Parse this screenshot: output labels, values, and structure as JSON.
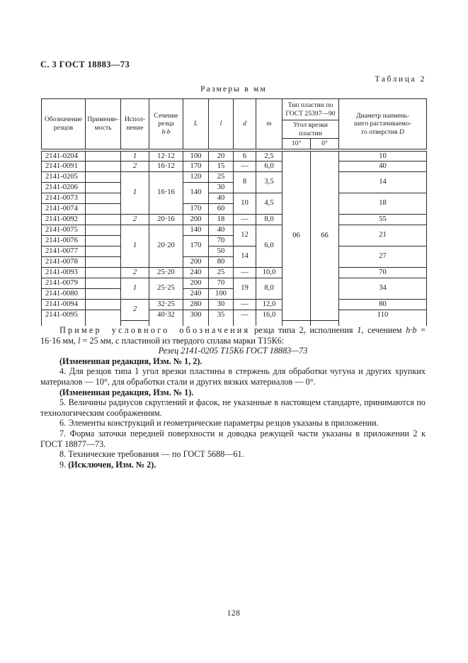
{
  "page": {
    "header_left": "С. 3 ГОСТ 18883—73",
    "table_label": "Таблица 2",
    "units_label": "Размеры в мм",
    "page_number": "128"
  },
  "table": {
    "header_rows": [
      [
        {
          "segs": [
            {
              "t": "Обозначение\nрезцов"
            }
          ],
          "rs": 3,
          "cls": "hb"
        },
        {
          "segs": [
            {
              "t": "Применяе-\nмость"
            }
          ],
          "rs": 3,
          "cls": "hb"
        },
        {
          "segs": [
            {
              "t": "Испол-\nнение"
            }
          ],
          "rs": 3,
          "cls": "hb"
        },
        {
          "segs": [
            {
              "t": "Сечение\nрезца\n"
            },
            {
              "t": "h·b",
              "i": 1
            }
          ],
          "rs": 3,
          "cls": "hb"
        },
        {
          "segs": [
            {
              "t": "L",
              "i": 1
            }
          ],
          "rs": 3,
          "cls": "hb"
        },
        {
          "segs": [
            {
              "t": "l",
              "i": 1
            }
          ],
          "rs": 3,
          "cls": "hb"
        },
        {
          "segs": [
            {
              "t": "d",
              "i": 1
            }
          ],
          "rs": 3,
          "cls": "hb"
        },
        {
          "segs": [
            {
              "t": "m",
              "i": 1
            }
          ],
          "rs": 3,
          "cls": "hb"
        },
        {
          "segs": [
            {
              "t": "Тип пластин по\nГОСТ 25397—90"
            }
          ],
          "cs": 2
        },
        {
          "segs": [
            {
              "t": "Диаметр наимень-\nшего растачиваемо-\nго отверстия "
            },
            {
              "t": "D",
              "i": 1
            }
          ],
          "rs": 3,
          "cls": "hb"
        }
      ],
      [
        {
          "segs": [
            {
              "t": "Угол врезки\nпластин"
            }
          ],
          "cs": 2
        }
      ],
      [
        {
          "segs": [
            {
              "t": "10°"
            }
          ],
          "cls": "hb"
        },
        {
          "segs": [
            {
              "t": "0°"
            }
          ],
          "cls": "hb"
        }
      ]
    ],
    "rows": [
      [
        {
          "t": "2141-0204",
          "cls": "des"
        },
        {
          "t": ""
        },
        {
          "t": "1",
          "i": 1
        },
        {
          "t": "12·12"
        },
        {
          "t": "100"
        },
        {
          "t": "20"
        },
        {
          "t": "6"
        },
        {
          "t": "2,5"
        },
        {
          "t": "06",
          "rs": 16
        },
        {
          "t": "66",
          "rs": 16
        },
        {
          "t": "10"
        }
      ],
      [
        {
          "t": "2141-0091",
          "cls": "des"
        },
        {
          "t": ""
        },
        {
          "t": "2",
          "i": 1
        },
        {
          "t": "16·12"
        },
        {
          "t": "170"
        },
        {
          "t": "15"
        },
        {
          "t": "—"
        },
        {
          "t": "6,0"
        },
        {
          "t": "40"
        }
      ],
      [
        {
          "t": "2141-0205",
          "cls": "des"
        },
        {
          "t": ""
        },
        {
          "t": "1",
          "i": 1,
          "rs": 4
        },
        {
          "t": "16·16",
          "rs": 4
        },
        {
          "t": "120"
        },
        {
          "t": "25"
        },
        {
          "t": "8",
          "rs": 2
        },
        {
          "t": "3,5",
          "rs": 2
        },
        {
          "t": "14",
          "rs": 2
        }
      ],
      [
        {
          "t": "2141-0206",
          "cls": "des"
        },
        {
          "t": ""
        },
        {
          "t": "140",
          "rs": 2
        },
        {
          "t": "30"
        }
      ],
      [
        {
          "t": "2141-0073",
          "cls": "des"
        },
        {
          "t": ""
        },
        {
          "t": "40"
        },
        {
          "t": "10",
          "rs": 2
        },
        {
          "t": "4,5",
          "rs": 2
        },
        {
          "t": "18",
          "rs": 2
        }
      ],
      [
        {
          "t": "2141-0074",
          "cls": "des"
        },
        {
          "t": ""
        },
        {
          "t": "170"
        },
        {
          "t": "60"
        }
      ],
      [
        {
          "t": "2141-0092",
          "cls": "des"
        },
        {
          "t": ""
        },
        {
          "t": "2",
          "i": 1
        },
        {
          "t": "20·16"
        },
        {
          "t": "200"
        },
        {
          "t": "18"
        },
        {
          "t": "—"
        },
        {
          "t": "8,0"
        },
        {
          "t": "55"
        }
      ],
      [
        {
          "t": "2141-0075",
          "cls": "des"
        },
        {
          "t": ""
        },
        {
          "t": "1",
          "i": 1,
          "rs": 4
        },
        {
          "t": "20·20",
          "rs": 4
        },
        {
          "t": "140"
        },
        {
          "t": "40"
        },
        {
          "t": "12",
          "rs": 2
        },
        {
          "t": "6,0",
          "rs": 4
        },
        {
          "t": "21",
          "rs": 2
        }
      ],
      [
        {
          "t": "2141-0076",
          "cls": "des"
        },
        {
          "t": ""
        },
        {
          "t": "170",
          "rs": 2
        },
        {
          "t": "70"
        }
      ],
      [
        {
          "t": "2141-0077",
          "cls": "des"
        },
        {
          "t": ""
        },
        {
          "t": "50"
        },
        {
          "t": "14",
          "rs": 2
        },
        {
          "t": "27",
          "rs": 2
        }
      ],
      [
        {
          "t": "2141-0078",
          "cls": "des"
        },
        {
          "t": ""
        },
        {
          "t": "200"
        },
        {
          "t": "80"
        }
      ],
      [
        {
          "t": "2141-0093",
          "cls": "des"
        },
        {
          "t": ""
        },
        {
          "t": "2",
          "i": 1
        },
        {
          "t": "25·20"
        },
        {
          "t": "240"
        },
        {
          "t": "25"
        },
        {
          "t": "—"
        },
        {
          "t": "10,0"
        },
        {
          "t": "70"
        }
      ],
      [
        {
          "t": "2141-0079",
          "cls": "des"
        },
        {
          "t": ""
        },
        {
          "t": "1",
          "i": 1,
          "rs": 2
        },
        {
          "t": "25·25",
          "rs": 2
        },
        {
          "t": "200"
        },
        {
          "t": "70"
        },
        {
          "t": "19",
          "rs": 2
        },
        {
          "t": "8,0",
          "rs": 2
        },
        {
          "t": "34",
          "rs": 2
        }
      ],
      [
        {
          "t": "2141-0080",
          "cls": "des"
        },
        {
          "t": ""
        },
        {
          "t": "240"
        },
        {
          "t": "100"
        }
      ],
      [
        {
          "t": "2141-0094",
          "cls": "des"
        },
        {
          "t": ""
        },
        {
          "t": "2",
          "i": 1,
          "rs": 2
        },
        {
          "t": "32·25"
        },
        {
          "t": "280"
        },
        {
          "t": "30"
        },
        {
          "t": "—"
        },
        {
          "t": "12,0"
        },
        {
          "t": "80"
        }
      ],
      [
        {
          "t": "2141-0095",
          "cls": "des"
        },
        {
          "t": ""
        },
        {
          "t": "40·32"
        },
        {
          "t": "300"
        },
        {
          "t": "35"
        },
        {
          "t": "—"
        },
        {
          "t": "16,0"
        },
        {
          "t": "110"
        }
      ]
    ]
  },
  "notes": [
    {
      "style": "indent",
      "name": "example-paragraph",
      "parts": [
        {
          "t": "Пример условного обозначения",
          "sp": 1
        },
        {
          "t": " резца типа 2, исполнения "
        },
        {
          "t": "1,",
          "i": 1
        },
        {
          "t": " сечением "
        },
        {
          "t": "h·b",
          "i": 1
        },
        {
          "t": " = 16·16 мм, "
        },
        {
          "t": "l",
          "i": 1
        },
        {
          "t": " = 25 мм, с пластиной из твердого сплава марки Т15К6:"
        }
      ]
    },
    {
      "style": "center",
      "name": "example-designation",
      "parts": [
        {
          "t": "Резец 2141-0205 Т15К6 ГОСТ 18883—73"
        }
      ]
    },
    {
      "style": "indent",
      "name": "note-revision-1-2",
      "parts": [
        {
          "t": "(Измененная редакция, Изм. № 1, 2).",
          "b": 1
        }
      ]
    },
    {
      "style": "indent",
      "name": "note-4",
      "parts": [
        {
          "t": "4. Для резцов типа 1 угол врезки пластины в стержень для обработки чугуна и других хрупких материалов — 10°, для обработки стали и других вязких материалов — 0°."
        }
      ]
    },
    {
      "style": "indent",
      "name": "note-revision-1",
      "parts": [
        {
          "t": "(Измененная редакция, Изм. № 1).",
          "b": 1
        }
      ]
    },
    {
      "style": "indent",
      "name": "note-5",
      "parts": [
        {
          "t": "5. Величины радиусов скруглений и фасок, не указанные в настоящем стандарте, принимаются по технологическим соображениям."
        }
      ]
    },
    {
      "style": "indent",
      "name": "note-6",
      "parts": [
        {
          "t": "6. Элементы конструкций и геометрические параметры резцов указаны в приложении."
        }
      ]
    },
    {
      "style": "indent",
      "name": "note-7",
      "parts": [
        {
          "t": "7. Форма заточки передней поверхности и доводка режущей части указаны в приложении 2 к ГОСТ 18877—73."
        }
      ]
    },
    {
      "style": "indent",
      "name": "note-8",
      "parts": [
        {
          "t": "8. Технические требования — по ГОСТ 5688—61."
        }
      ]
    },
    {
      "style": "indent",
      "name": "note-9",
      "parts": [
        {
          "t": "9. "
        },
        {
          "t": "(Исключен, Изм. № 2).",
          "b": 1
        }
      ]
    }
  ]
}
